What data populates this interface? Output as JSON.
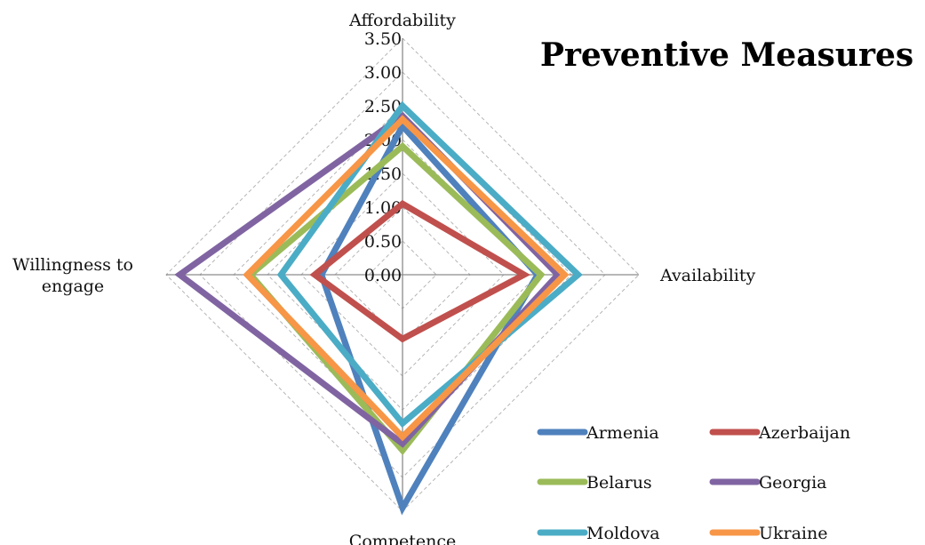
{
  "chart_data": {
    "type": "radar",
    "title": "Preventive Measures",
    "axes": [
      "Affordability",
      "Availability",
      "Competence",
      "Willingness to engage"
    ],
    "axis_label_lines": [
      [
        "Affordability"
      ],
      [
        "Availability"
      ],
      [
        "Competence"
      ],
      [
        "Willingness to",
        "engage"
      ]
    ],
    "ticks": [
      "0.00",
      "0.50",
      "1.00",
      "1.50",
      "2.00",
      "2.50",
      "3.00",
      "3.50"
    ],
    "range": [
      0,
      3.5
    ],
    "grid": true,
    "legend_position": "bottom-right",
    "series": [
      {
        "name": "Armenia",
        "color": "#4F81BD",
        "values": [
          2.2,
          2.0,
          3.45,
          1.2
        ]
      },
      {
        "name": "Azerbaijan",
        "color": "#C0504D",
        "values": [
          1.05,
          1.8,
          0.95,
          1.3
        ]
      },
      {
        "name": "Belarus",
        "color": "#9BBB59",
        "values": [
          1.9,
          2.05,
          2.6,
          2.25
        ]
      },
      {
        "name": "Georgia",
        "color": "#8064A2",
        "values": [
          2.35,
          2.3,
          2.5,
          3.3
        ]
      },
      {
        "name": "Moldova",
        "color": "#4BACC6",
        "values": [
          2.5,
          2.6,
          2.2,
          1.8
        ]
      },
      {
        "name": "Ukraine",
        "color": "#F79646",
        "values": [
          2.3,
          2.4,
          2.4,
          2.3
        ]
      }
    ]
  }
}
